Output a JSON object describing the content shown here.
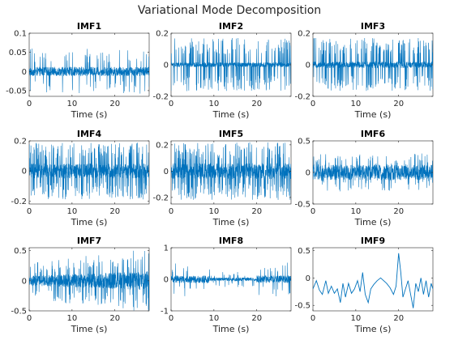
{
  "figure": {
    "title": "Variational Mode Decomposition",
    "line_color": "#0072BD"
  },
  "chart_data": [
    {
      "type": "line",
      "title": "IMF1",
      "xlabel": "Time (s)",
      "ylabel": "",
      "xlim": [
        0,
        28
      ],
      "ylim": [
        -0.065,
        0.1
      ],
      "xticks": [
        0,
        10,
        20
      ],
      "yticks": [
        -0.05,
        0,
        0.05,
        0.1
      ],
      "ytick_labels": [
        "-0.05",
        "0",
        "0.05",
        "0.1"
      ],
      "grid": false,
      "series": [
        {
          "kind": "noise",
          "base_amp": 0.012,
          "spike_amp": 0.06,
          "spike_rate": 0.9,
          "bias": 0,
          "ripple": 0,
          "env": "flat"
        }
      ]
    },
    {
      "type": "line",
      "title": "IMF2",
      "xlabel": "Time (s)",
      "ylabel": "",
      "xlim": [
        0,
        28
      ],
      "ylim": [
        -0.2,
        0.2
      ],
      "xticks": [
        0,
        10,
        20
      ],
      "yticks": [
        -0.2,
        0,
        0.2
      ],
      "ytick_labels": [
        "-0.2",
        "0",
        "0.2"
      ],
      "grid": false,
      "series": [
        {
          "kind": "noise",
          "base_amp": 0.015,
          "spike_amp": 0.17,
          "spike_rate": 2.2,
          "bias": 0,
          "ripple": 0,
          "env": "flat"
        }
      ]
    },
    {
      "type": "line",
      "title": "IMF3",
      "xlabel": "Time (s)",
      "ylabel": "",
      "xlim": [
        0,
        28
      ],
      "ylim": [
        -0.2,
        0.2
      ],
      "xticks": [
        0,
        10,
        20
      ],
      "yticks": [
        -0.2,
        0,
        0.2
      ],
      "ytick_labels": [
        "-0.2",
        "0",
        "0.2"
      ],
      "grid": false,
      "series": [
        {
          "kind": "noise",
          "base_amp": 0.02,
          "spike_amp": 0.17,
          "spike_rate": 2.4,
          "bias": 0,
          "ripple": 0,
          "env": "flat"
        }
      ]
    },
    {
      "type": "line",
      "title": "IMF4",
      "xlabel": "Time (s)",
      "ylabel": "",
      "xlim": [
        0,
        28
      ],
      "ylim": [
        -0.22,
        0.2
      ],
      "xticks": [
        0,
        10,
        20
      ],
      "yticks": [
        -0.2,
        0,
        0.2
      ],
      "ytick_labels": [
        "-0.2",
        "0",
        "0.2"
      ],
      "grid": false,
      "series": [
        {
          "kind": "noise",
          "base_amp": 0.05,
          "spike_amp": 0.19,
          "spike_rate": 2.6,
          "bias": 0,
          "ripple": 0,
          "env": "flat"
        }
      ]
    },
    {
      "type": "line",
      "title": "IMF5",
      "xlabel": "Time (s)",
      "ylabel": "",
      "xlim": [
        0,
        28
      ],
      "ylim": [
        -0.25,
        0.23
      ],
      "xticks": [
        0,
        10,
        20
      ],
      "yticks": [
        -0.2,
        0,
        0.2
      ],
      "ytick_labels": [
        "-0.2",
        "0",
        "0.2"
      ],
      "grid": false,
      "series": [
        {
          "kind": "noise",
          "base_amp": 0.06,
          "spike_amp": 0.22,
          "spike_rate": 2.6,
          "bias": 0,
          "ripple": 0,
          "env": "flat"
        }
      ]
    },
    {
      "type": "line",
      "title": "IMF6",
      "xlabel": "Time (s)",
      "ylabel": "",
      "xlim": [
        0,
        28
      ],
      "ylim": [
        -0.5,
        0.5
      ],
      "xticks": [
        0,
        10,
        20
      ],
      "yticks": [
        -0.5,
        0,
        0.5
      ],
      "ytick_labels": [
        "-0.5",
        "0",
        "0.5"
      ],
      "grid": false,
      "series": [
        {
          "kind": "noise",
          "base_amp": 0.12,
          "spike_amp": 0.3,
          "spike_rate": 1.2,
          "bias": 0,
          "ripple": 0,
          "env": "flat"
        }
      ]
    },
    {
      "type": "line",
      "title": "IMF7",
      "xlabel": "Time (s)",
      "ylabel": "",
      "xlim": [
        0,
        28
      ],
      "ylim": [
        -0.5,
        0.55
      ],
      "xticks": [
        0,
        10,
        20
      ],
      "yticks": [
        -0.5,
        0,
        0.5
      ],
      "ytick_labels": [
        "-0.5",
        "0",
        "0.5"
      ],
      "grid": false,
      "series": [
        {
          "kind": "noise",
          "base_amp": 0.12,
          "spike_amp": 0.42,
          "spike_rate": 1.6,
          "bias": 0,
          "ripple": 0,
          "env": "grow"
        }
      ]
    },
    {
      "type": "line",
      "title": "IMF8",
      "xlabel": "Time (s)",
      "ylabel": "",
      "xlim": [
        0,
        28
      ],
      "ylim": [
        -1,
        1
      ],
      "xticks": [
        0,
        10,
        20
      ],
      "yticks": [
        -1,
        0,
        1
      ],
      "ytick_labels": [
        "-1",
        "0",
        "1"
      ],
      "grid": false,
      "series": [
        {
          "kind": "noise",
          "base_amp": 0.12,
          "spike_amp": 0.55,
          "spike_rate": 0.9,
          "bias": 0,
          "ripple": 0,
          "env": "dip"
        }
      ]
    },
    {
      "type": "line",
      "title": "IMF9",
      "xlabel": "Time (s)",
      "ylabel": "",
      "xlim": [
        0,
        28
      ],
      "ylim": [
        -0.6,
        0.55
      ],
      "xticks": [
        0,
        10,
        20
      ],
      "yticks": [
        -0.5,
        0,
        0.5
      ],
      "ytick_labels": [
        "-0.5",
        "0",
        "0.5"
      ],
      "grid": false,
      "series": [
        {
          "kind": "trend",
          "points": [
            [
              0,
              -0.2
            ],
            [
              0.8,
              -0.05
            ],
            [
              1.5,
              -0.22
            ],
            [
              2.2,
              -0.3
            ],
            [
              3.0,
              -0.05
            ],
            [
              3.6,
              -0.28
            ],
            [
              4.3,
              -0.15
            ],
            [
              5.0,
              -0.28
            ],
            [
              5.7,
              -0.2
            ],
            [
              6.4,
              -0.45
            ],
            [
              7.0,
              -0.1
            ],
            [
              7.6,
              -0.35
            ],
            [
              8.3,
              -0.1
            ],
            [
              9.0,
              -0.28
            ],
            [
              9.7,
              -0.2
            ],
            [
              10.4,
              -0.05
            ],
            [
              11.0,
              -0.25
            ],
            [
              11.6,
              0.1
            ],
            [
              12.2,
              -0.3
            ],
            [
              12.9,
              -0.45
            ],
            [
              13.5,
              -0.2
            ],
            [
              14.2,
              -0.12
            ],
            [
              15.0,
              -0.05
            ],
            [
              15.8,
              0.0
            ],
            [
              16.5,
              -0.05
            ],
            [
              17.2,
              -0.1
            ],
            [
              18.0,
              -0.18
            ],
            [
              18.8,
              -0.3
            ],
            [
              19.4,
              -0.15
            ],
            [
              20.0,
              0.45
            ],
            [
              20.5,
              0.1
            ],
            [
              21.0,
              -0.35
            ],
            [
              21.6,
              -0.2
            ],
            [
              22.2,
              -0.05
            ],
            [
              22.8,
              -0.3
            ],
            [
              23.4,
              -0.55
            ],
            [
              24.0,
              -0.1
            ],
            [
              24.6,
              -0.25
            ],
            [
              25.2,
              0.0
            ],
            [
              25.8,
              -0.3
            ],
            [
              26.4,
              -0.05
            ],
            [
              27.0,
              -0.35
            ],
            [
              27.6,
              -0.1
            ],
            [
              28.0,
              -0.2
            ]
          ]
        }
      ]
    }
  ]
}
